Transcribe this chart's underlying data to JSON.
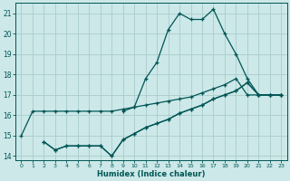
{
  "xlabel": "Humidex (Indice chaleur)",
  "bg_color": "#cce8e8",
  "grid_color": "#aacccc",
  "line_color": "#005555",
  "xlim": [
    -0.5,
    23.5
  ],
  "ylim": [
    13.8,
    21.5
  ],
  "xticks": [
    0,
    1,
    2,
    3,
    4,
    5,
    6,
    7,
    8,
    9,
    10,
    11,
    12,
    13,
    14,
    15,
    16,
    17,
    18,
    19,
    20,
    21,
    22,
    23
  ],
  "yticks": [
    14,
    15,
    16,
    17,
    18,
    19,
    20,
    21
  ],
  "line1_x": [
    0,
    1,
    2,
    3,
    4,
    5,
    6,
    7,
    8,
    9,
    10,
    11,
    12,
    13,
    14,
    15,
    16,
    17,
    18,
    19,
    20,
    21,
    22,
    23
  ],
  "line1_y": [
    15.0,
    16.2,
    16.2,
    16.2,
    16.2,
    16.2,
    16.2,
    16.2,
    16.2,
    16.3,
    16.4,
    16.5,
    16.6,
    16.7,
    16.8,
    16.9,
    17.1,
    17.3,
    17.5,
    17.8,
    17.0,
    17.0,
    17.0,
    17.0
  ],
  "line2_x": [
    2,
    3,
    4,
    5,
    6,
    7,
    8,
    9,
    10,
    11,
    12,
    13,
    14,
    15,
    16,
    17,
    18,
    19,
    20,
    21,
    22,
    23
  ],
  "line2_y": [
    14.7,
    14.3,
    14.5,
    14.5,
    14.5,
    14.5,
    14.0,
    14.8,
    15.1,
    15.4,
    15.6,
    15.8,
    16.1,
    16.3,
    16.5,
    16.8,
    17.0,
    17.2,
    17.6,
    17.0,
    17.0,
    17.0
  ],
  "line3_x": [
    9,
    10,
    11,
    12,
    13,
    14,
    15,
    16,
    17,
    18,
    19,
    20,
    21,
    22,
    23
  ],
  "line3_y": [
    16.2,
    16.4,
    17.8,
    18.6,
    20.2,
    21.0,
    20.7,
    20.7,
    21.2,
    20.0,
    19.0,
    17.8,
    17.0,
    17.0,
    17.0
  ],
  "line4_x": [
    2,
    3,
    4,
    5,
    6,
    7,
    8,
    9,
    10,
    11,
    12,
    13,
    14,
    15,
    16,
    17,
    18,
    19,
    20,
    21,
    22,
    23
  ],
  "line4_y": [
    14.7,
    14.3,
    14.5,
    14.5,
    14.5,
    14.5,
    14.0,
    14.8,
    15.1,
    15.4,
    15.6,
    15.8,
    16.1,
    16.3,
    16.5,
    16.8,
    17.0,
    17.2,
    17.6,
    17.0,
    17.0,
    17.0
  ]
}
